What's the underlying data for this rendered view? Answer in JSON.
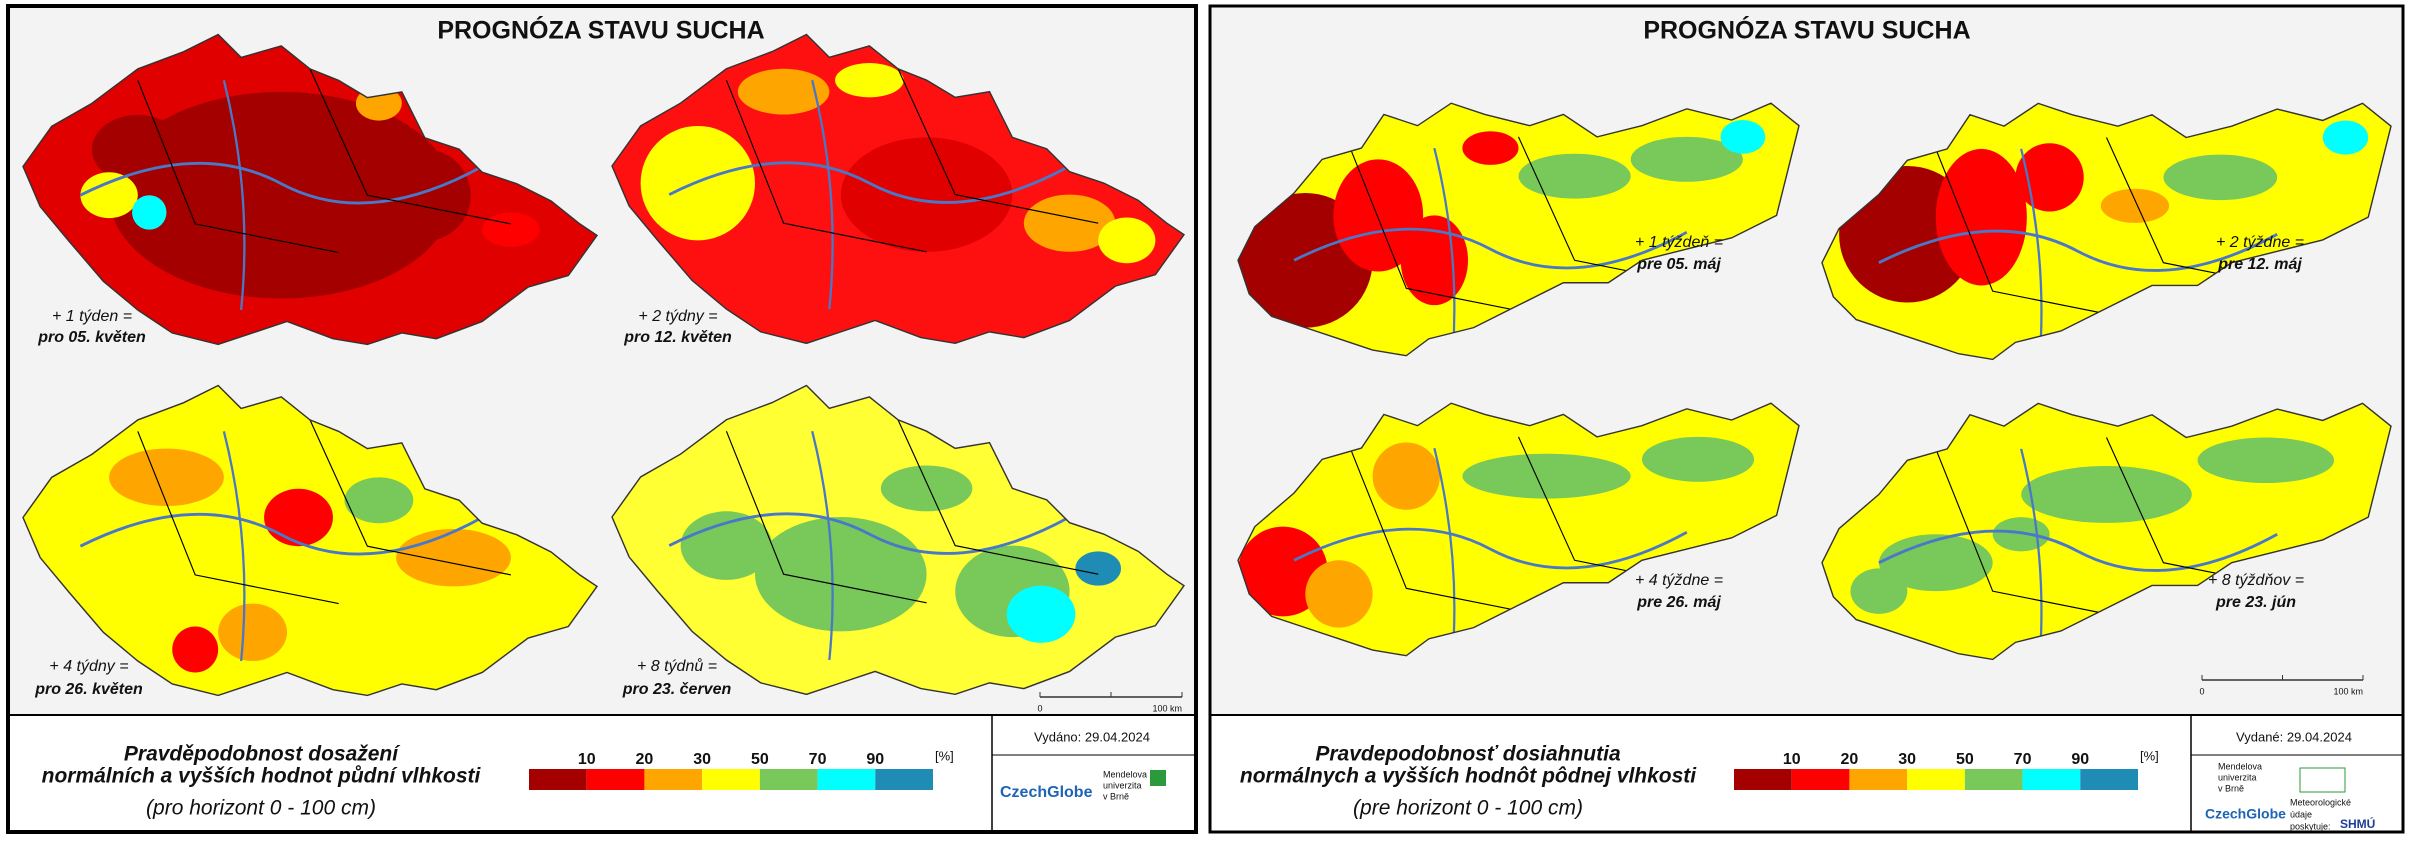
{
  "panels": [
    {
      "title": "PROGNÓZA STAVU SUCHA",
      "maps": [
        {
          "line1": "+ 1 týden =",
          "line2": "pro 05. květen"
        },
        {
          "line1": "+ 2 týdny =",
          "line2": "pro 12. květen"
        },
        {
          "line1": "+ 4 týdny =",
          "line2": "pro 26. květen"
        },
        {
          "line1": "+ 8 týdnů =",
          "line2": "pro 23. červen"
        }
      ],
      "scale_bar": {
        "start": 0,
        "end": "100 km"
      },
      "legend": {
        "title_lines": [
          "Pravděpodobnost dosažení",
          "normálních a vyšších hodnot půdní vlhkosti"
        ],
        "subtitle": "(pro horizont 0 - 100 cm)",
        "ticks": [
          10,
          20,
          30,
          50,
          70,
          90
        ],
        "unit": "[%]",
        "colors": [
          "#a50000",
          "#ff0000",
          "#ffa500",
          "#ffff00",
          "#78c85a",
          "#00ffff",
          "#1e8cb4"
        ]
      },
      "issued": "Vydáno: 29.04.2024",
      "logos": {
        "czechglobe": "CzechGlobe",
        "mendelu": [
          "Mendelova",
          "univerzita",
          "v Brně"
        ]
      }
    },
    {
      "title": "PROGNÓZA STAVU SUCHA",
      "maps": [
        {
          "line1": "+ 1 týždeň =",
          "line2": "pre 05. máj"
        },
        {
          "line1": "+ 2 týždne =",
          "line2": "pre 12. máj"
        },
        {
          "line1": "+ 4 týždne =",
          "line2": "pre 26. máj"
        },
        {
          "line1": "+ 8 týždňov =",
          "line2": "pre 23. jún"
        }
      ],
      "scale_bar": {
        "start": 0,
        "end": "100 km"
      },
      "legend": {
        "title_lines": [
          "Pravdepodobnosť dosiahnutia",
          "normálnych a vyšších hodnôt pôdnej vlhkosti"
        ],
        "subtitle": "(pre horizont 0 - 100 cm)",
        "ticks": [
          10,
          20,
          30,
          50,
          70,
          90
        ],
        "unit": "[%]",
        "colors": [
          "#a50000",
          "#ff0000",
          "#ffa500",
          "#ffff00",
          "#78c85a",
          "#00ffff",
          "#1e8cb4"
        ]
      },
      "issued": "Vydané: 29.04.2024",
      "logos": {
        "czechglobe": "CzechGlobe",
        "mendelu": [
          "Mendelova",
          "univerzita",
          "v Brně"
        ],
        "shmu_lines": [
          "Meteorologické",
          "údaje",
          "poskytuje:"
        ],
        "shmu": "SHMÚ"
      }
    }
  ]
}
